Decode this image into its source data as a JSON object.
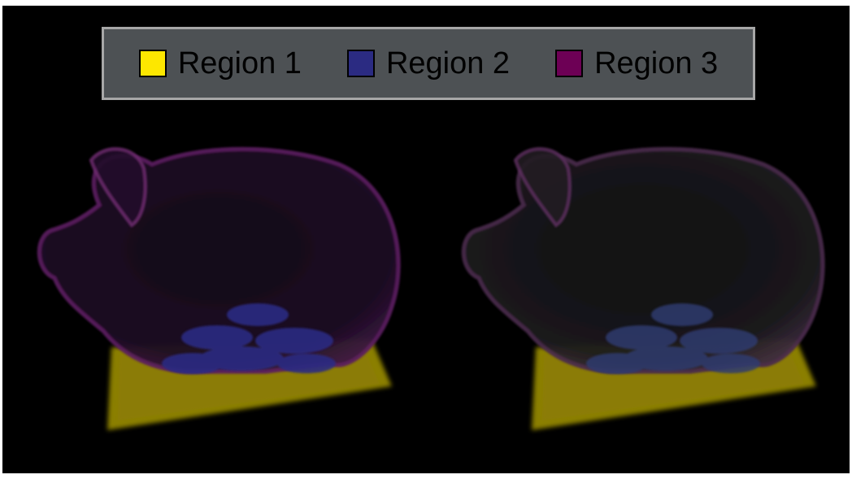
{
  "legend": {
    "items": [
      {
        "label": "Region 1",
        "color": "#fde700"
      },
      {
        "label": "Region 2",
        "color": "#2b2b82"
      },
      {
        "label": "Region 3",
        "color": "#6d0055"
      }
    ]
  },
  "renders": [
    {
      "name": "render-left",
      "region_colors": [
        "#fde700",
        "#2b2b82",
        "#6d0055"
      ]
    },
    {
      "name": "render-right",
      "region_colors": [
        "#fde700",
        "#2b2b82",
        "#6d0055"
      ]
    }
  ]
}
